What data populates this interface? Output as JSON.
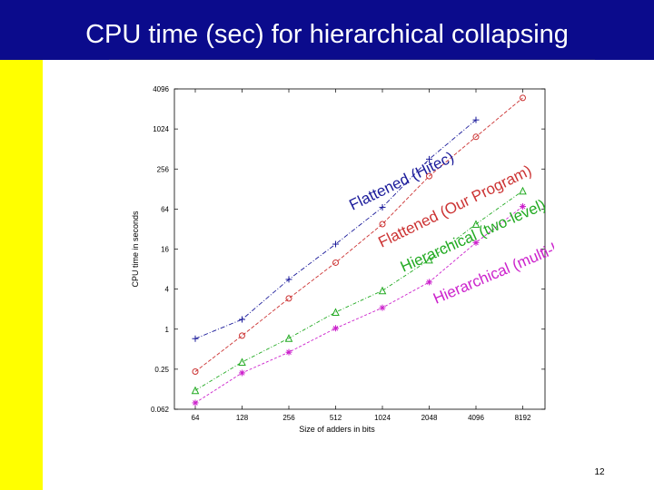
{
  "slide": {
    "title": "CPU time (sec) for hierarchical collapsing",
    "page_number": "12",
    "colors": {
      "header": "#0b0b8c",
      "sidebar": "#ffff00"
    }
  },
  "chart_data": {
    "type": "line",
    "xlabel": "Size of adders in bits",
    "ylabel": "CPU time in seconds",
    "x_scale": "log2",
    "y_scale": "log2",
    "categories": [
      "64",
      "128",
      "256",
      "512",
      "1024",
      "2048",
      "4096",
      "8192"
    ],
    "yticks": [
      "0.062",
      "0.25",
      "1",
      "4",
      "16",
      "64",
      "256",
      "1024",
      "4096"
    ],
    "yticks_values": [
      0.0625,
      0.25,
      1,
      4,
      16,
      64,
      256,
      1024,
      4096
    ],
    "ylim": [
      0.0625,
      4096
    ],
    "grid": false,
    "series": [
      {
        "name": "Flattened (Hitec)",
        "color": "#1a1a9a",
        "marker": "plus",
        "values": [
          0.72,
          1.4,
          5.6,
          19,
          68,
          360,
          1400,
          null
        ]
      },
      {
        "name": "Flattened (Our Program)",
        "color": "#cc3333",
        "marker": "circle",
        "values": [
          0.23,
          0.8,
          2.9,
          10,
          38,
          200,
          780,
          3000
        ]
      },
      {
        "name": "Hierarchical (two-level)",
        "color": "#22aa22",
        "marker": "triangle",
        "values": [
          0.12,
          0.32,
          0.73,
          1.8,
          3.8,
          11,
          38,
          120
        ]
      },
      {
        "name": "Hierarchical (multi-level)",
        "color": "#cc22cc",
        "marker": "star",
        "values": [
          0.078,
          0.22,
          0.45,
          1.03,
          2.1,
          5.1,
          20,
          70
        ]
      }
    ]
  }
}
